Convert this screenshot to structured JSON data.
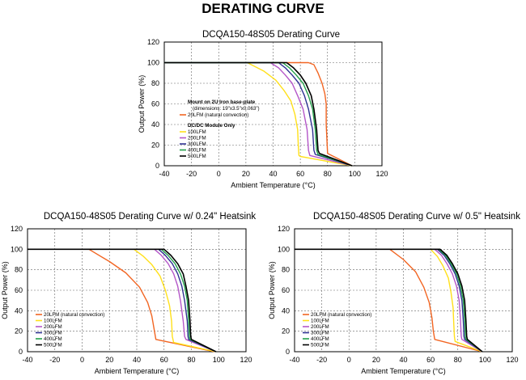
{
  "page_title": "DERATING CURVE",
  "colors": {
    "20LFM": "#f26522",
    "100LFM": "#ffe01a",
    "200LFM": "#b456c8",
    "300LFM": "#2e3192",
    "400LFM": "#22a04a",
    "500LFM": "#000000"
  },
  "chart_data": [
    {
      "type": "line",
      "title": "DCQA150-48S05 Derating Curve",
      "xlabel": "Ambient Temperature (°C)",
      "ylabel": "Output Power (%)",
      "xlim": [
        -40,
        120
      ],
      "ylim": [
        0,
        120
      ],
      "xticks": [
        "-40",
        "-20",
        "0",
        "20",
        "40",
        "60",
        "80",
        "100",
        "120"
      ],
      "yticks": [
        "0",
        "20",
        "40",
        "60",
        "80",
        "100",
        "120"
      ],
      "grid": "dashed",
      "legend_heading": "Mount on 2U Iron base-plate",
      "legend_subheading": "(dimensions: 19\"x3.5\"x0.063\")",
      "legend_group_heading": "DC/DC Module Only",
      "series": [
        {
          "name": "20LFM (natural convection)",
          "x": [
            -40,
            66,
            70,
            73,
            76,
            78,
            79,
            79,
            80,
            98
          ],
          "y": [
            100,
            100,
            98,
            90,
            80,
            70,
            60,
            40,
            12,
            0
          ]
        },
        {
          "name": "100LFM",
          "x": [
            -40,
            21,
            33,
            42,
            48,
            53,
            56,
            58,
            58.5,
            59,
            60,
            98
          ],
          "y": [
            100,
            100,
            92,
            83,
            73,
            63,
            50,
            35,
            20,
            10,
            9,
            0
          ]
        },
        {
          "name": "200LFM",
          "x": [
            -40,
            38,
            44,
            49,
            54,
            58,
            62,
            65,
            66,
            67,
            98
          ],
          "y": [
            100,
            100,
            95,
            88,
            80,
            68,
            55,
            35,
            15,
            10,
            0
          ]
        },
        {
          "name": "300LFM",
          "x": [
            -40,
            44,
            49,
            54,
            59,
            63,
            66,
            69,
            70,
            71,
            98
          ],
          "y": [
            100,
            100,
            95,
            88,
            80,
            68,
            55,
            35,
            15,
            11,
            0
          ]
        },
        {
          "name": "400LFM",
          "x": [
            -40,
            47,
            52,
            57,
            62,
            66,
            69,
            71,
            72,
            73,
            98
          ],
          "y": [
            100,
            100,
            95,
            88,
            80,
            68,
            55,
            35,
            15,
            11,
            0
          ]
        },
        {
          "name": "500LFM",
          "x": [
            -40,
            50,
            55,
            60,
            64,
            68,
            70,
            72,
            73,
            74,
            98
          ],
          "y": [
            100,
            100,
            95,
            88,
            80,
            68,
            55,
            35,
            15,
            12,
            0
          ]
        }
      ]
    },
    {
      "type": "line",
      "title": "DCQA150-48S05 Derating Curve w/ 0.24\" Heatsink",
      "xlabel": "Ambient Temperature (°C)",
      "ylabel": "Output Power (%)",
      "xlim": [
        -40,
        120
      ],
      "ylim": [
        0,
        120
      ],
      "xticks": [
        "-40",
        "-20",
        "0",
        "20",
        "40",
        "60",
        "80",
        "100",
        "120"
      ],
      "yticks": [
        "0",
        "20",
        "40",
        "60",
        "80",
        "100",
        "120"
      ],
      "grid": "dashed",
      "series": [
        {
          "name": "20LFM (natural convection)",
          "x": [
            -40,
            5,
            20,
            32,
            42,
            48,
            51,
            53,
            54,
            97
          ],
          "y": [
            100,
            100,
            88,
            77,
            63,
            48,
            35,
            20,
            12,
            0
          ]
        },
        {
          "name": "100LFM",
          "x": [
            -40,
            38,
            45,
            51,
            57,
            61,
            64,
            65.5,
            66,
            67,
            98
          ],
          "y": [
            100,
            100,
            93,
            85,
            74,
            60,
            45,
            30,
            15,
            9,
            0
          ]
        },
        {
          "name": "200LFM",
          "x": [
            -40,
            53,
            58,
            63,
            67,
            70,
            72,
            74,
            75,
            76,
            98
          ],
          "y": [
            100,
            100,
            94,
            86,
            76,
            64,
            50,
            30,
            15,
            12,
            0
          ]
        },
        {
          "name": "300LFM",
          "x": [
            -40,
            56,
            61,
            66,
            70,
            73,
            75,
            77,
            77.5,
            78,
            98
          ],
          "y": [
            100,
            100,
            94,
            86,
            76,
            64,
            50,
            30,
            15,
            12,
            0
          ]
        },
        {
          "name": "400LFM",
          "x": [
            -40,
            58,
            63,
            68,
            72,
            75,
            77,
            78,
            78.5,
            79,
            98
          ],
          "y": [
            100,
            100,
            94,
            86,
            76,
            64,
            50,
            30,
            15,
            12,
            0
          ]
        },
        {
          "name": "500LFM",
          "x": [
            -40,
            60,
            65,
            70,
            74,
            76,
            78,
            79,
            79.5,
            80,
            98
          ],
          "y": [
            100,
            100,
            94,
            86,
            76,
            64,
            50,
            30,
            15,
            12,
            0
          ]
        }
      ]
    },
    {
      "type": "line",
      "title": "DCQA150-48S05 Derating Curve w/ 0.5\" Heatsink",
      "xlabel": "Ambient Temperature (°C)",
      "ylabel": "Output Power (%)",
      "xlim": [
        -40,
        120
      ],
      "ylim": [
        0,
        120
      ],
      "xticks": [
        "-40",
        "-20",
        "0",
        "20",
        "40",
        "60",
        "80",
        "100",
        "120"
      ],
      "yticks": [
        "0",
        "20",
        "40",
        "60",
        "80",
        "100",
        "120"
      ],
      "grid": "dashed",
      "series": [
        {
          "name": "20LFM (natural convection)",
          "x": [
            -40,
            30,
            40,
            49,
            55,
            59,
            61,
            62,
            63,
            98
          ],
          "y": [
            100,
            100,
            90,
            78,
            63,
            48,
            33,
            20,
            12,
            0
          ]
        },
        {
          "name": "100LFM",
          "x": [
            -40,
            60,
            65,
            69,
            73,
            75,
            76.5,
            77,
            77.5,
            78,
            98
          ],
          "y": [
            100,
            100,
            93,
            84,
            72,
            58,
            43,
            28,
            15,
            10,
            0
          ]
        },
        {
          "name": "200LFM",
          "x": [
            -40,
            63,
            68,
            72,
            76,
            79,
            81,
            82,
            82.5,
            83,
            98
          ],
          "y": [
            100,
            100,
            94,
            86,
            76,
            64,
            50,
            30,
            15,
            12,
            0
          ]
        },
        {
          "name": "300LFM",
          "x": [
            -40,
            65,
            70,
            74,
            78,
            81,
            83,
            84,
            84.5,
            85,
            98
          ],
          "y": [
            100,
            100,
            94,
            86,
            76,
            64,
            50,
            30,
            15,
            12,
            0
          ]
        },
        {
          "name": "400LFM",
          "x": [
            -40,
            66,
            71,
            75,
            79,
            82,
            84,
            85,
            85.5,
            86,
            98
          ],
          "y": [
            100,
            100,
            94,
            86,
            76,
            64,
            50,
            30,
            15,
            12,
            0
          ]
        },
        {
          "name": "500LFM",
          "x": [
            -40,
            67,
            72,
            76,
            80,
            83,
            85,
            86,
            86.5,
            87,
            98
          ],
          "y": [
            100,
            100,
            94,
            86,
            76,
            64,
            50,
            30,
            15,
            12,
            0
          ]
        }
      ]
    }
  ]
}
